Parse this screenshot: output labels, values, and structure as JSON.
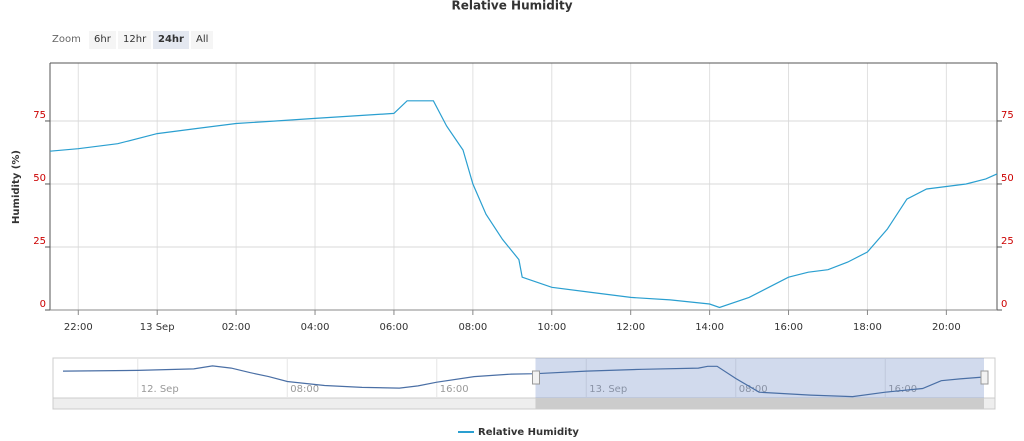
{
  "chart_data": [
    {
      "type": "line",
      "title": "Relative Humidity",
      "y_axis_label": "Humidity (%)",
      "x": [
        "12 Sep 21:17",
        "12 Sep 22:00",
        "12 Sep 23:00",
        "13 Sep 00:00",
        "13 Sep 01:00",
        "13 Sep 02:00",
        "13 Sep 03:00",
        "13 Sep 04:00",
        "13 Sep 05:00",
        "13 Sep 06:00",
        "13 Sep 06:20",
        "13 Sep 07:00",
        "13 Sep 07:20",
        "13 Sep 07:45",
        "13 Sep 08:00",
        "13 Sep 08:20",
        "13 Sep 08:45",
        "13 Sep 09:10",
        "13 Sep 09:15",
        "13 Sep 10:00",
        "13 Sep 11:00",
        "13 Sep 12:00",
        "13 Sep 13:00",
        "13 Sep 14:00",
        "13 Sep 14:15",
        "13 Sep 15:00",
        "13 Sep 15:30",
        "13 Sep 16:00",
        "13 Sep 16:30",
        "13 Sep 17:00",
        "13 Sep 17:30",
        "13 Sep 18:00",
        "13 Sep 18:30",
        "13 Sep 19:00",
        "13 Sep 19:30",
        "13 Sep 20:00",
        "13 Sep 20:30",
        "13 Sep 21:00",
        "13 Sep 21:17"
      ],
      "series": [
        {
          "name": "Relative Humidity",
          "color": "#2a9fd0",
          "values": [
            63,
            64,
            66,
            70,
            72,
            74,
            75,
            76,
            77,
            78,
            83,
            83,
            73,
            63.5,
            50,
            38,
            28,
            20,
            13,
            9,
            7,
            5,
            4,
            2.4,
            1,
            5,
            9,
            13,
            15,
            16,
            19,
            23,
            32,
            44,
            48,
            49,
            50,
            52,
            54
          ]
        }
      ],
      "xlim": [
        "12 Sep 21:17",
        "13 Sep 21:17"
      ],
      "xticks": [
        {
          "value": "12 Sep 22:00",
          "label": "22:00"
        },
        {
          "value": "13 Sep 00:00",
          "label": "13 Sep"
        },
        {
          "value": "13 Sep 02:00",
          "label": "02:00"
        },
        {
          "value": "13 Sep 04:00",
          "label": "04:00"
        },
        {
          "value": "13 Sep 06:00",
          "label": "06:00"
        },
        {
          "value": "13 Sep 08:00",
          "label": "08:00"
        },
        {
          "value": "13 Sep 10:00",
          "label": "10:00"
        },
        {
          "value": "13 Sep 12:00",
          "label": "12:00"
        },
        {
          "value": "13 Sep 14:00",
          "label": "14:00"
        },
        {
          "value": "13 Sep 16:00",
          "label": "16:00"
        },
        {
          "value": "13 Sep 18:00",
          "label": "18:00"
        },
        {
          "value": "13 Sep 20:00",
          "label": "20:00"
        }
      ],
      "ylim": [
        0,
        98
      ],
      "yticks": [
        0,
        25,
        50,
        75
      ],
      "y2lim": [
        0,
        98
      ],
      "y2ticks": [
        0,
        25,
        50,
        75
      ],
      "grid": true,
      "legend": "bottom"
    },
    {
      "type": "line",
      "x": [
        "11 Sep 20:00",
        "12 Sep 00:00",
        "12 Sep 03:00",
        "12 Sep 04:00",
        "12 Sep 05:00",
        "12 Sep 06:00",
        "12 Sep 07:00",
        "12 Sep 08:00",
        "12 Sep 10:00",
        "12 Sep 12:00",
        "12 Sep 14:00",
        "12 Sep 15:00",
        "12 Sep 16:00",
        "12 Sep 18:00",
        "12 Sep 20:00",
        "12 Sep 21:17",
        "13 Sep 00:00",
        "13 Sep 03:00",
        "13 Sep 06:00",
        "13 Sep 06:30",
        "13 Sep 07:00",
        "13 Sep 08:00",
        "13 Sep 09:15",
        "13 Sep 12:00",
        "13 Sep 14:15",
        "13 Sep 16:00",
        "13 Sep 18:00",
        "13 Sep 19:00",
        "13 Sep 20:00",
        "13 Sep 21:17"
      ],
      "series": [
        {
          "color": "#4a6fa5",
          "values": [
            70,
            72,
            76,
            84,
            78,
            66,
            55,
            42,
            31,
            26,
            24,
            30,
            40,
            55,
            62,
            63,
            70,
            75,
            78,
            83,
            83,
            50,
            13,
            5,
            1,
            13,
            23,
            44,
            49,
            54
          ]
        }
      ],
      "xlim": [
        "11 Sep 20:00",
        "13 Sep 21:17"
      ],
      "xticks": [
        {
          "value": "12 Sep 00:00",
          "label": "12. Sep"
        },
        {
          "value": "12 Sep 08:00",
          "label": "08:00"
        },
        {
          "value": "12 Sep 16:00",
          "label": "16:00"
        },
        {
          "value": "13 Sep 00:00",
          "label": "13. Sep"
        },
        {
          "value": "13 Sep 08:00",
          "label": "08:00"
        },
        {
          "value": "13 Sep 16:00",
          "label": "16:00"
        }
      ],
      "ylim": [
        0,
        100
      ]
    }
  ],
  "range_selector": {
    "label": "Zoom",
    "buttons": [
      "6hr",
      "12hr",
      "24hr",
      "All"
    ],
    "selected": 2
  }
}
